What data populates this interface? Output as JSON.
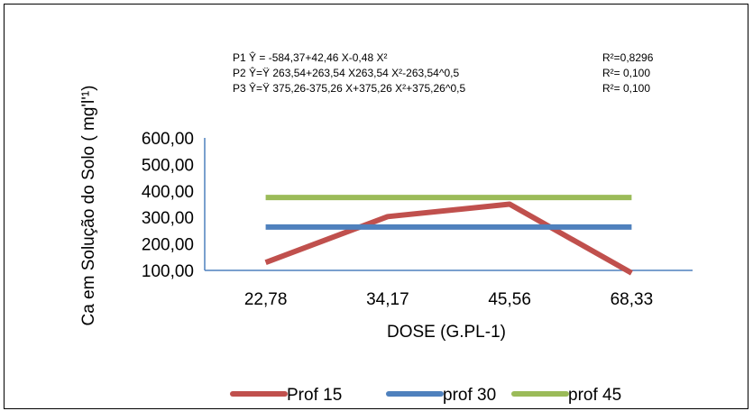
{
  "chart_data": {
    "type": "line",
    "xlabel": "DOSE (G.PL-1)",
    "ylabel": "Ca em Solução do Solo ( mg'l'¹)",
    "categories": [
      "22,78",
      "34,17",
      "45,56",
      "68,33"
    ],
    "ylim": [
      100,
      600
    ],
    "yticks": [
      "100,00",
      "200,00",
      "300,00",
      "400,00",
      "500,00",
      "600,00"
    ],
    "grid": false,
    "legend_position": "bottom",
    "series": [
      {
        "name": "Prof 15",
        "color": "#c0504d",
        "values": [
          130,
          303,
          350,
          90
        ]
      },
      {
        "name": "prof 30",
        "color": "#4f81bd",
        "values": [
          263.54,
          263.54,
          263.54,
          263.54
        ]
      },
      {
        "name": "prof 45",
        "color": "#9bbb59",
        "values": [
          375.26,
          375.26,
          375.26,
          375.26
        ]
      }
    ],
    "equations": [
      {
        "text": "P1 Ŷ = -584,37+42,46 X-0,48 X²",
        "r2": "R²=0,8296"
      },
      {
        "text": "P2 Ŷ=Ÿ 263,54+263,54 X263,54 X²-263,54^0,5",
        "r2": "R²= 0,100"
      },
      {
        "text": "P3 Ŷ=Ÿ 375,26-375,26 X+375,26 X²+375,26^0,5",
        "r2": "R²= 0,100"
      }
    ]
  }
}
